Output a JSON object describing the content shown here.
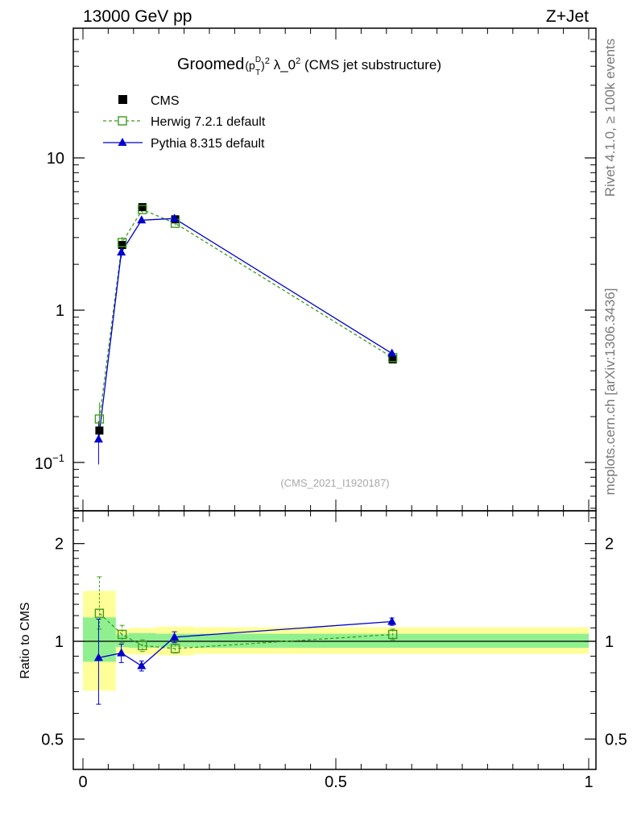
{
  "header": {
    "left": "13000 GeV pp",
    "right": "Z+Jet"
  },
  "side_labels": {
    "top": "Rivet 4.1.0, ≥ 100k events",
    "bottom": "mcplots.cern.ch [arXiv:1306.3436]"
  },
  "chart_data": [
    {
      "type": "line",
      "scale": "log",
      "title_main": "Groomed",
      "title_p": "(p",
      "title_sup_d": "D",
      "title_sub_t": "T",
      "title_mid": ")",
      "title_sup2a": "2",
      "title_lambda": " λ_0",
      "title_sup2b": "2",
      "title_tail": " (CMS jet substructure)",
      "watermark": "(CMS_2021_I1920187)",
      "xlim": [
        0,
        1
      ],
      "ylim": [
        0.05,
        70
      ],
      "yticks": [
        {
          "base": "10",
          "exp": "−1"
        },
        {
          "label": "1"
        },
        {
          "label": "10"
        }
      ],
      "x": [
        0.0325,
        0.0775,
        0.1175,
        0.1825,
        0.6125
      ],
      "series": [
        {
          "name": "CMS",
          "marker": "square-filled",
          "color": "#000000",
          "values": [
            0.162,
            2.68,
            4.75,
            3.95,
            0.475
          ],
          "err_low": [
            0.01,
            0.12,
            0.2,
            0.15,
            0.02
          ],
          "err_high": [
            0.01,
            0.12,
            0.2,
            0.15,
            0.02
          ],
          "xerr": [
            0.0325,
            0.0125,
            0.0275,
            0.0375,
            0.3875
          ]
        },
        {
          "name": "Herwig 7.2.1 default",
          "marker": "square-open",
          "color": "#3f9b1e",
          "values": [
            0.193,
            2.78,
            4.58,
            3.72,
            0.488
          ],
          "err_low": [
            0.045,
            0.2,
            0.2,
            0.12,
            0.02
          ],
          "err_high": [
            0.055,
            0.25,
            0.25,
            0.12,
            0.02
          ]
        },
        {
          "name": "Pythia 8.315 default",
          "marker": "triangle-filled",
          "color": "#0000cc",
          "values": [
            0.142,
            2.4,
            3.9,
            4.0,
            0.52
          ],
          "err_low": [
            0.045,
            0.2,
            0.15,
            0.12,
            0.02
          ],
          "err_high": [
            0.045,
            0.2,
            0.15,
            0.12,
            0.02
          ]
        }
      ]
    },
    {
      "type": "line",
      "scale": "log",
      "ylabel": "Ratio to CMS",
      "ylim": [
        0.4,
        2.4
      ],
      "yticks": [
        0.5,
        1,
        2
      ],
      "ytick_labels": [
        "0.5",
        "1",
        "2"
      ],
      "xticks": [
        0,
        0.5,
        1
      ],
      "xtick_labels": [
        "0",
        "0.5",
        "1"
      ],
      "x": [
        0.0325,
        0.0775,
        0.1175,
        0.1825,
        0.6125
      ],
      "bands": {
        "x_edges": [
          [
            0.0,
            0.065
          ],
          [
            0.065,
            0.09
          ],
          [
            0.09,
            0.145
          ],
          [
            0.145,
            0.22
          ],
          [
            0.22,
            1.0
          ]
        ],
        "inner": [
          [
            0.865,
            1.185
          ],
          [
            0.96,
            1.05
          ],
          [
            0.955,
            1.06
          ],
          [
            0.96,
            1.055
          ],
          [
            0.955,
            1.055
          ]
        ],
        "outer": [
          [
            0.705,
            1.43
          ],
          [
            0.915,
            1.09
          ],
          [
            0.91,
            1.1
          ],
          [
            0.905,
            1.11
          ],
          [
            0.915,
            1.105
          ]
        ],
        "inner_color": "#90f090",
        "outer_color": "#ffff99"
      },
      "series": [
        {
          "name": "Herwig 7.2.1 default",
          "values": [
            1.22,
            1.05,
            0.97,
            0.95,
            1.05
          ],
          "err_low": [
            0.13,
            0.06,
            0.04,
            0.03,
            0.04
          ],
          "err_high": [
            0.36,
            0.07,
            0.04,
            0.03,
            0.04
          ]
        },
        {
          "name": "Pythia 8.315 default",
          "values": [
            0.89,
            0.92,
            0.84,
            1.03,
            1.15
          ],
          "err_low": [
            0.25,
            0.06,
            0.03,
            0.04,
            0.03
          ],
          "err_high": [
            0.28,
            0.06,
            0.03,
            0.04,
            0.03
          ]
        }
      ]
    }
  ]
}
